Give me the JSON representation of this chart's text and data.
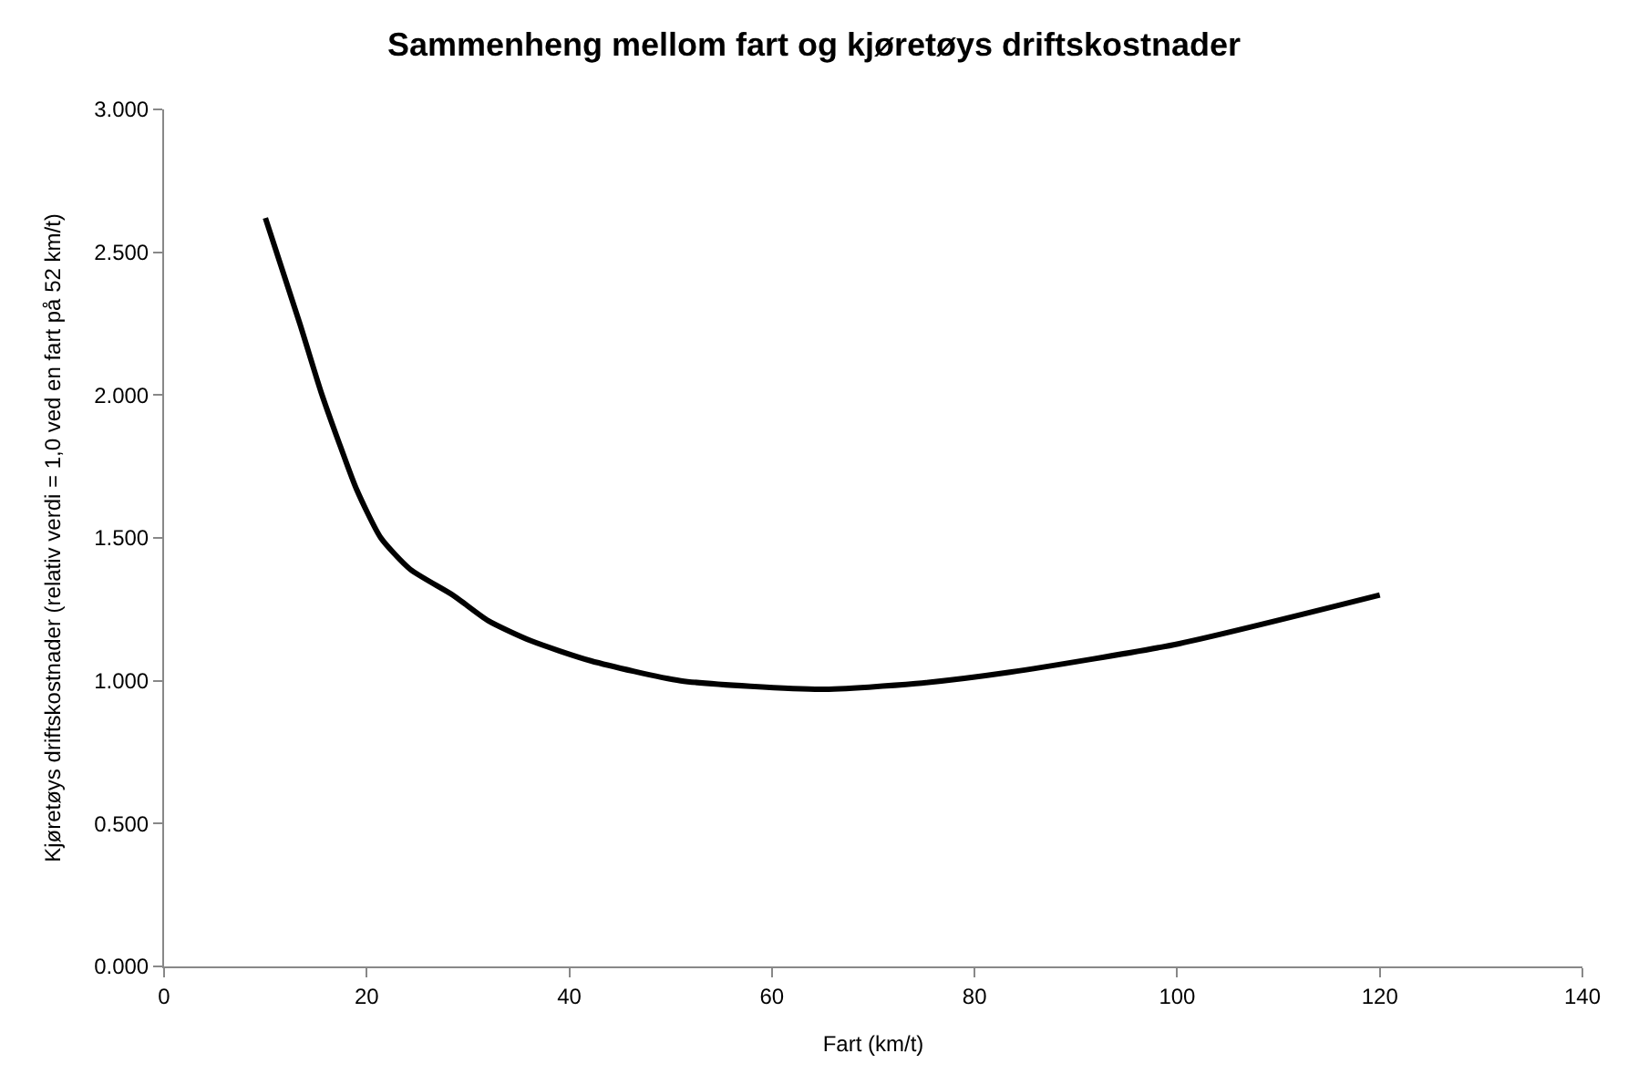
{
  "chart_data": {
    "type": "line",
    "title": "Sammenheng mellom fart og kjøretøys driftskostnader",
    "xlabel": "Fart (km/t)",
    "ylabel": "Kjøretøys driftskostnader (relativ verdi = 1,0 ved en fart på 52 km/t)",
    "x": [
      10,
      13.4,
      15.5,
      17.2,
      19,
      21.4,
      24.3,
      28.5,
      32,
      36.2,
      42.1,
      51,
      64.8,
      74.2,
      83.5,
      100.2,
      120
    ],
    "series": [
      {
        "color": "#000000",
        "values": [
          2.62,
          2.25,
          2.01,
          1.84,
          1.67,
          1.5,
          1.39,
          1.3,
          1.21,
          1.14,
          1.07,
          1.0,
          0.97,
          0.99,
          1.03,
          1.13,
          1.3
        ]
      }
    ],
    "xlim": [
      0,
      140
    ],
    "xticks": [
      0,
      20,
      40,
      60,
      80,
      100,
      120,
      140
    ],
    "ylim": [
      0,
      3
    ],
    "yticks": [
      {
        "value": 0,
        "label": "0.000"
      },
      {
        "value": 0.5,
        "label": "0.500"
      },
      {
        "value": 1,
        "label": "1.000"
      },
      {
        "value": 1.5,
        "label": "1.500"
      },
      {
        "value": 2,
        "label": "2.000"
      },
      {
        "value": 2.5,
        "label": "2.500"
      },
      {
        "value": 3,
        "label": "3.000"
      }
    ],
    "marker": "none",
    "line_style": "solid"
  }
}
